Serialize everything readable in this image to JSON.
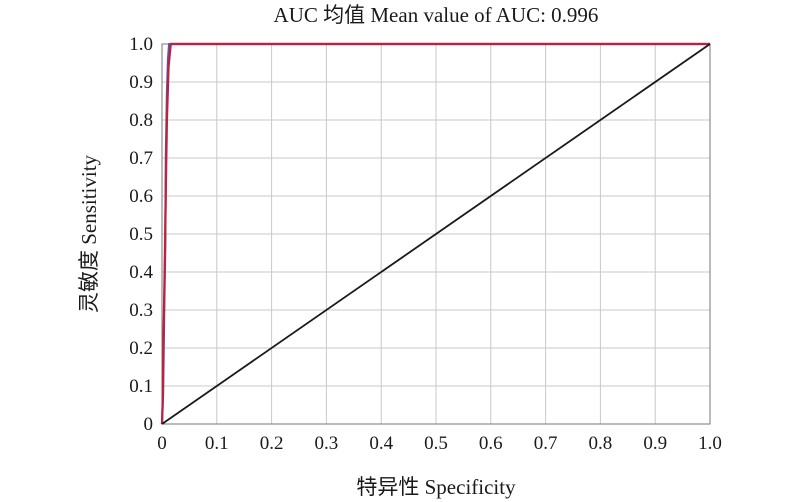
{
  "chart_data": {
    "type": "line",
    "title": "AUC 均值 Mean value of AUC: 0.996",
    "xlabel": "特异性 Specificity",
    "ylabel": "灵敏度 Sensitivity",
    "xlim": [
      0,
      1
    ],
    "ylim": [
      0,
      1
    ],
    "grid": true,
    "x_ticks": [
      "0",
      "0.1",
      "0.2",
      "0.3",
      "0.4",
      "0.5",
      "0.6",
      "0.7",
      "0.8",
      "0.9",
      "1.0"
    ],
    "y_ticks": [
      "0",
      "0.1",
      "0.2",
      "0.3",
      "0.4",
      "0.5",
      "0.6",
      "0.7",
      "0.8",
      "0.9",
      "1.0"
    ],
    "series": [
      {
        "color": "#4a5cc4",
        "points": [
          [
            0,
            0
          ],
          [
            0.002,
            0.08
          ],
          [
            0.004,
            0.3
          ],
          [
            0.006,
            0.47
          ],
          [
            0.007,
            0.7
          ],
          [
            0.009,
            0.87
          ],
          [
            0.011,
            0.96
          ],
          [
            0.013,
            1.0
          ],
          [
            1.0,
            1.0
          ]
        ]
      },
      {
        "color": "#c0203a",
        "points": [
          [
            0,
            0
          ],
          [
            0.001,
            0.05
          ],
          [
            0.003,
            0.25
          ],
          [
            0.005,
            0.42
          ],
          [
            0.007,
            0.62
          ],
          [
            0.009,
            0.8
          ],
          [
            0.012,
            0.94
          ],
          [
            0.016,
            1.0
          ],
          [
            1.0,
            1.0
          ]
        ]
      },
      {
        "color": "#1a1a1a",
        "points": [
          [
            0,
            0
          ],
          [
            1,
            1
          ]
        ]
      }
    ]
  }
}
